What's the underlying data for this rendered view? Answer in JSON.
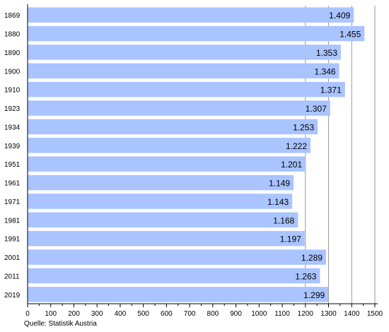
{
  "chart_data": {
    "type": "bar",
    "orientation": "horizontal",
    "categories": [
      "1869",
      "1880",
      "1890",
      "1900",
      "1910",
      "1923",
      "1934",
      "1939",
      "1951",
      "1961",
      "1971",
      "1981",
      "1991",
      "2001",
      "2011",
      "2019"
    ],
    "values": [
      1409,
      1455,
      1353,
      1346,
      1371,
      1307,
      1253,
      1222,
      1201,
      1149,
      1143,
      1168,
      1197,
      1289,
      1263,
      1299
    ],
    "data_labels": [
      "1.409",
      "1.455",
      "1.353",
      "1.346",
      "1.371",
      "1.307",
      "1.253",
      "1.222",
      "1.201",
      "1.149",
      "1.143",
      "1.168",
      "1.197",
      "1.289",
      "1.263",
      "1.299"
    ],
    "x_ticks": [
      "0",
      "100",
      "200",
      "300",
      "400",
      "500",
      "600",
      "700",
      "800",
      "900",
      "1000",
      "1100",
      "1200",
      "1300",
      "1400",
      "1500"
    ],
    "xlim": [
      0,
      1500
    ],
    "title": "",
    "xlabel": "",
    "ylabel": "",
    "grid": "vertical gridlines from 1200 to 1500",
    "legend": "none",
    "colors": {
      "bar": "#aac4ff",
      "grid": "#999999",
      "axis": "#000000"
    }
  },
  "source": "Quelle: Statistik Austria"
}
